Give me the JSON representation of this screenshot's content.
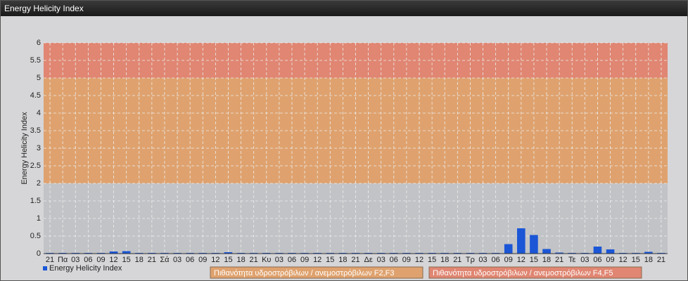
{
  "chart_data": {
    "type": "bar",
    "title": "Energy Helicity Index",
    "y_label": "Energy Helicity Index",
    "categories": [
      "21",
      "Πα",
      "03",
      "06",
      "09",
      "12",
      "15",
      "18",
      "21",
      "Σά",
      "03",
      "06",
      "09",
      "12",
      "15",
      "18",
      "21",
      "Κυ",
      "03",
      "06",
      "09",
      "12",
      "15",
      "18",
      "21",
      "Δε",
      "03",
      "06",
      "09",
      "12",
      "15",
      "18",
      "21",
      "Τρ",
      "03",
      "06",
      "09",
      "12",
      "15",
      "18",
      "21",
      "Τε",
      "03",
      "06",
      "09",
      "12",
      "15",
      "18",
      "21"
    ],
    "series": [
      {
        "name": "Energy Helicity Index",
        "color": "#1a56d6",
        "values": [
          0.02,
          0.02,
          0.02,
          0.02,
          0.02,
          0.06,
          0.07,
          0.02,
          0.02,
          0.02,
          0.02,
          0.02,
          0.02,
          0.02,
          0.04,
          0.02,
          0.02,
          0.02,
          0.02,
          0.02,
          0.02,
          0.02,
          0.02,
          0.02,
          0.02,
          0.02,
          0.02,
          0.02,
          0.02,
          0.02,
          0.02,
          0.02,
          0.02,
          0.02,
          0.02,
          0.02,
          0.27,
          0.72,
          0.53,
          0.13,
          0.03,
          0.02,
          0.02,
          0.2,
          0.12,
          0.02,
          0.02,
          0.05,
          0.02
        ]
      }
    ],
    "bands": [
      {
        "from": 0,
        "to": 2,
        "color": "#c2c3c6"
      },
      {
        "from": 2,
        "to": 5,
        "color": "#dfa26e",
        "label": "Πιθανότητα υδροστρόβιλων / ανεμοστρόβιλων F2,F3"
      },
      {
        "from": 5,
        "to": 6,
        "color": "#e08672",
        "label": "Πιθανότητα υδροστρόβιλων / ανεμοστρόβιλων F4,F5"
      }
    ],
    "ylim": [
      0,
      6
    ],
    "yticks": [
      0,
      0.5,
      1,
      1.5,
      2,
      2.5,
      3,
      3.5,
      4,
      4.5,
      5,
      5.5,
      6
    ],
    "grid": true
  }
}
